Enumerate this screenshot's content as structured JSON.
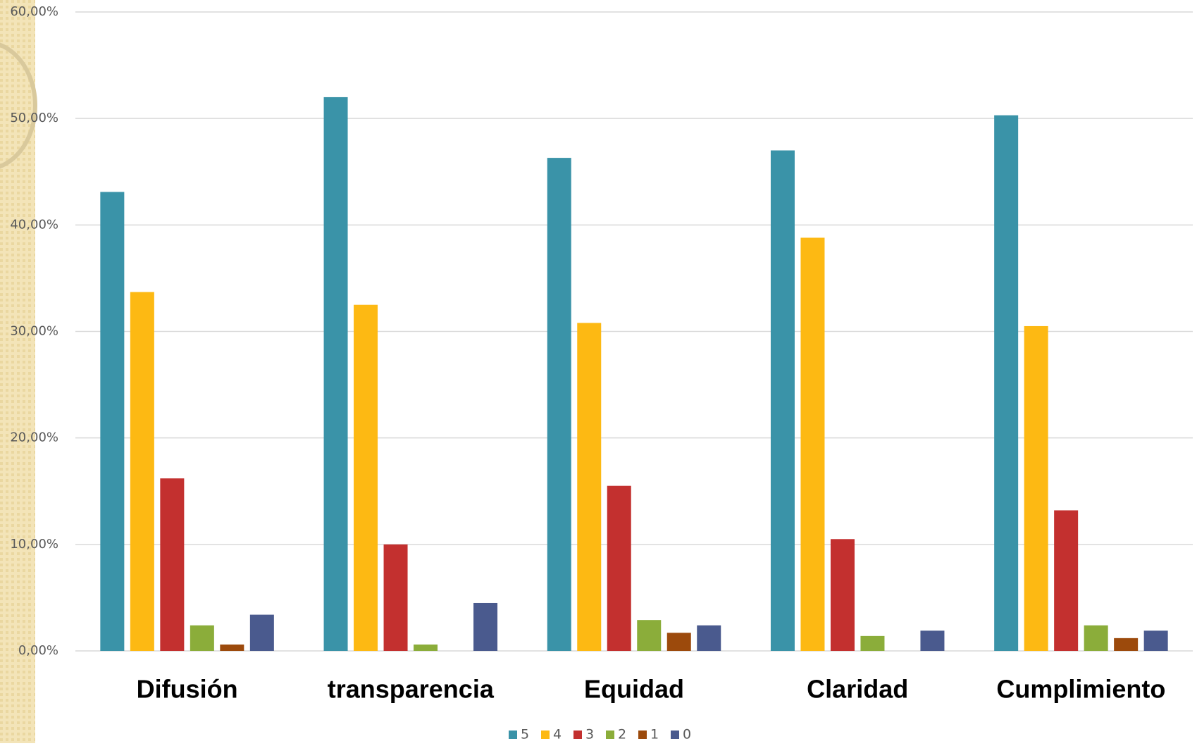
{
  "chart_data": {
    "type": "bar",
    "categories": [
      "Difusión",
      "transparencia",
      "Equidad",
      "Claridad",
      "Cumplimiento"
    ],
    "series": [
      {
        "name": "5",
        "color": "#3A93A8",
        "values": [
          43.1,
          52.0,
          46.3,
          47.0,
          50.3
        ]
      },
      {
        "name": "4",
        "color": "#FDB913",
        "values": [
          33.7,
          32.5,
          30.8,
          38.8,
          30.5
        ]
      },
      {
        "name": "3",
        "color": "#C3302F",
        "values": [
          16.2,
          10.0,
          15.5,
          10.5,
          13.2
        ]
      },
      {
        "name": "2",
        "color": "#8BAD3A",
        "values": [
          2.4,
          0.6,
          2.9,
          1.4,
          2.4
        ]
      },
      {
        "name": "1",
        "color": "#9C4A0C",
        "values": [
          0.6,
          0,
          1.7,
          0,
          1.2
        ]
      },
      {
        "name": "0",
        "color": "#4A5A8E",
        "values": [
          3.4,
          4.5,
          2.4,
          1.9,
          1.9
        ]
      }
    ],
    "ylim": [
      0,
      60
    ],
    "yticks": [
      {
        "value": 0,
        "label": "0,00%"
      },
      {
        "value": 10,
        "label": "10,00%"
      },
      {
        "value": 20,
        "label": "20,00%"
      },
      {
        "value": 30,
        "label": "30,00%"
      },
      {
        "value": 40,
        "label": "40,00%"
      },
      {
        "value": 50,
        "label": "50,00%"
      },
      {
        "value": 60,
        "label": "60,00%"
      }
    ],
    "grid": true,
    "legend": "bottom"
  }
}
